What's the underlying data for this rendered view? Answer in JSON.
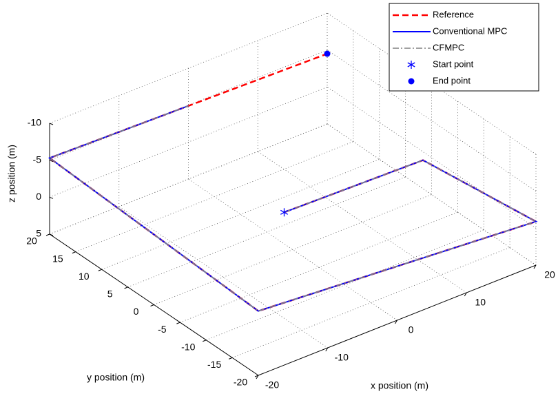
{
  "chart_data": {
    "type": "line3d",
    "xlabel": "x position (m)",
    "ylabel": "y position (m)",
    "zlabel": "z position (m)",
    "xlim": [
      -20,
      20
    ],
    "ylim": [
      -20,
      20
    ],
    "zlim": [
      -10,
      5
    ],
    "z_reverse": true,
    "xticks": [
      -20,
      -10,
      0,
      10,
      20
    ],
    "yticks": [
      -20,
      -15,
      -10,
      -5,
      0,
      5,
      10,
      15,
      20
    ],
    "zticks": [
      -10,
      -5,
      0,
      5
    ],
    "grid": true,
    "legend": "northeast",
    "series": [
      {
        "name": "Reference",
        "color": "#ff0000",
        "dash": "dashed",
        "x": [
          -5,
          15,
          20,
          -20,
          -20,
          20
        ],
        "y": [
          -5,
          -5,
          -20,
          -20,
          20,
          20
        ],
        "z": [
          -4.3,
          -3.9,
          -0.9,
          -3.7,
          -5.3,
          -4.5
        ]
      },
      {
        "name": "Conventional MPC",
        "color": "#0000ff",
        "dash": "solid",
        "x": [
          -5,
          15,
          20,
          -20,
          -20,
          0
        ],
        "y": [
          -5,
          -5,
          -20,
          -20,
          20,
          20
        ],
        "z": [
          -4.3,
          -3.9,
          -0.9,
          -3.7,
          -5.3,
          -4.9
        ]
      },
      {
        "name": "CFMPC",
        "color": "#808080",
        "dash": "dashdot",
        "x": [
          -5,
          15,
          20,
          -20,
          -20,
          0
        ],
        "y": [
          -5,
          -5,
          -20,
          -20,
          20,
          20
        ],
        "z": [
          -4.3,
          -3.9,
          -0.9,
          -3.7,
          -5.3,
          -4.9
        ]
      },
      {
        "name": "Start point",
        "color": "#0000ff",
        "marker": "star",
        "x": [
          -5
        ],
        "y": [
          -5
        ],
        "z": [
          -4.3
        ]
      },
      {
        "name": "End point",
        "color": "#0000ff",
        "marker": "dot",
        "x": [
          20
        ],
        "y": [
          20
        ],
        "z": [
          -4.5
        ]
      }
    ]
  }
}
